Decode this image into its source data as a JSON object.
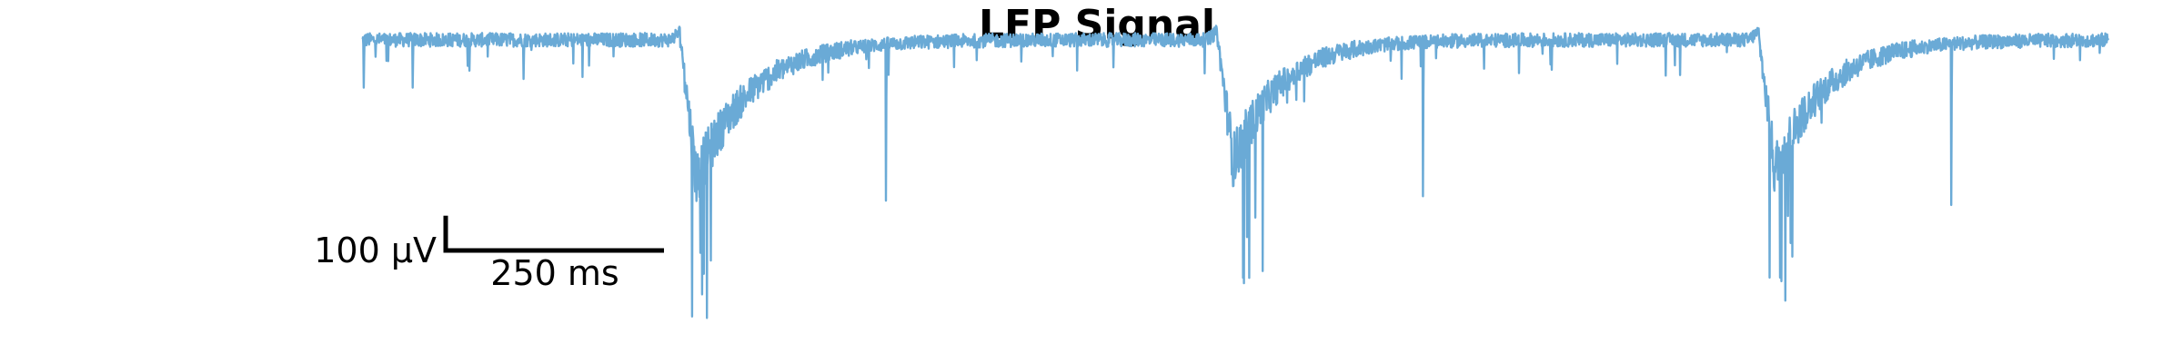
{
  "chart_data": {
    "type": "line",
    "title": "LFP Signal",
    "xlabel": "",
    "ylabel": "",
    "grid": false,
    "axes_visible": false,
    "color": "#6aaad6",
    "x_unit": "ms",
    "y_unit": "µV",
    "xlim": [
      0,
      2000
    ],
    "ylim": [
      -330,
      25
    ],
    "baseline": 0,
    "noise_amplitude": 8,
    "scale_bar": {
      "time_value": 250,
      "time_label": "250 ms",
      "amplitude_value": 100,
      "amplitude_label": "100 μV"
    },
    "events": [
      {
        "time": 365,
        "depth": -160,
        "min": -320,
        "duration": 140
      },
      {
        "time": 980,
        "depth": -140,
        "min": -280,
        "duration": 120
      },
      {
        "time": 1600,
        "depth": -150,
        "min": -300,
        "duration": 130
      }
    ],
    "spikes": [
      {
        "time": 2,
        "value": -55
      },
      {
        "time": 58,
        "value": -55
      },
      {
        "time": 185,
        "value": -45
      },
      {
        "time": 600,
        "value": -185
      },
      {
        "time": 1215,
        "value": -180
      },
      {
        "time": 1820,
        "value": -190
      },
      {
        "time": 1990,
        "value": -15
      }
    ]
  }
}
